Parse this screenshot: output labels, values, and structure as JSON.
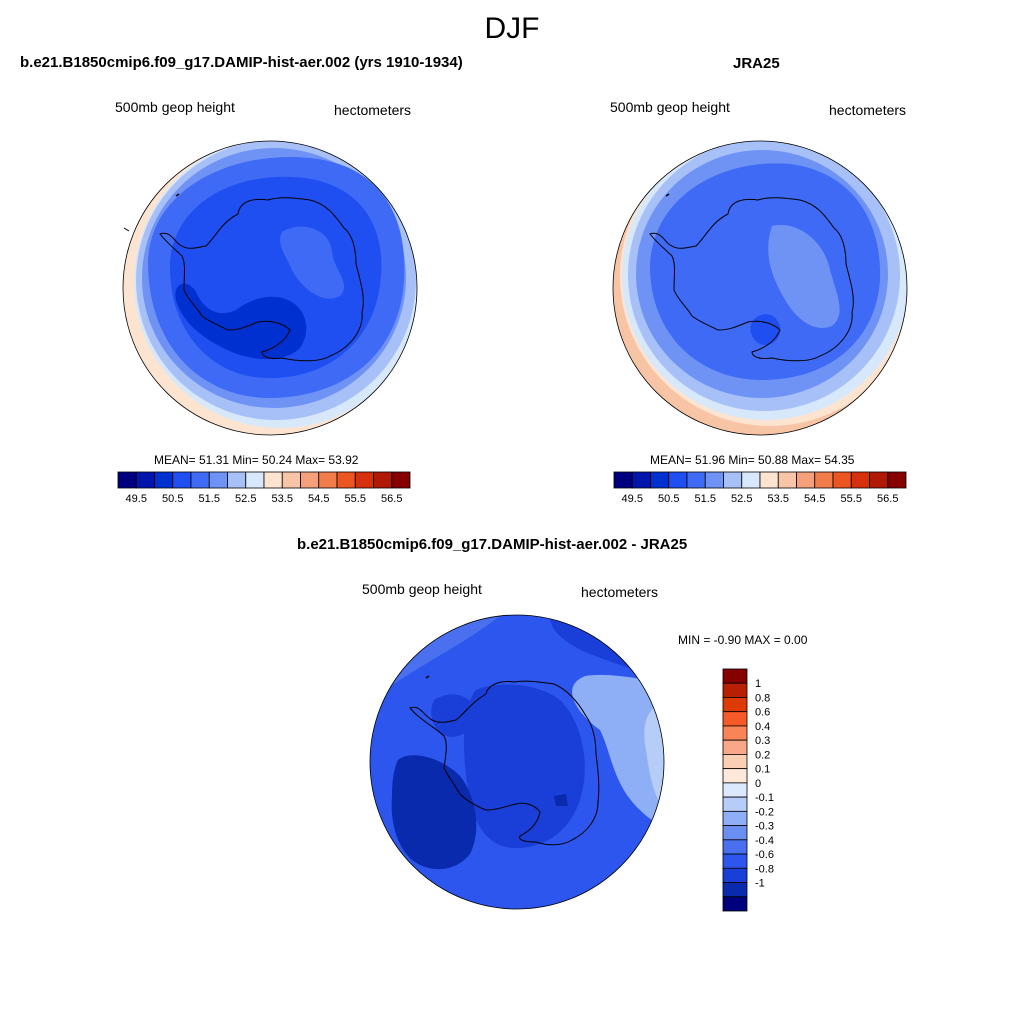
{
  "season": "DJF",
  "panels": [
    {
      "title": "b.e21.B1850cmip6.f09_g17.DAMIP-hist-aer.002 (yrs 1910-1934)",
      "variable": "500mb geop height",
      "units": "hectometers",
      "stats": "MEAN=  51.31  Min=  50.24  Max=  53.92"
    },
    {
      "title": "JRA25",
      "variable": "500mb geop height",
      "units": "hectometers",
      "stats": "MEAN=  51.96  Min=  50.88  Max=  54.35"
    },
    {
      "title": "b.e21.B1850cmip6.f09_g17.DAMIP-hist-aer.002 - JRA25",
      "variable": "500mb geop height",
      "units": "hectometers",
      "stats": "MIN =  -0.90 MAX =   0.00"
    }
  ],
  "abs_colorbar": {
    "colors": [
      "#00007f",
      "#0015aa",
      "#0030d0",
      "#1f4ff0",
      "#3f6af5",
      "#6f93f5",
      "#a7c0f8",
      "#d8e8fb",
      "#fde4d0",
      "#f8c4a6",
      "#f4a07a",
      "#f37c4c",
      "#ea5522",
      "#d6300c",
      "#b01a04",
      "#860000"
    ],
    "labels": [
      "49.5",
      "50.5",
      "51.5",
      "52.5",
      "53.5",
      "54.5",
      "55.5",
      "56.5"
    ]
  },
  "diff_colorbar": {
    "colors": [
      "#860000",
      "#b82004",
      "#de3a06",
      "#f65a28",
      "#f88458",
      "#f8a888",
      "#fbcfb4",
      "#fde8da",
      "#dce8fb",
      "#b6cdf8",
      "#8eaff5",
      "#6a8ff2",
      "#4a70f0",
      "#2c56ee",
      "#1a3fd8",
      "#0a2aae",
      "#00007f"
    ],
    "labels": [
      "1",
      "0.8",
      "0.6",
      "0.4",
      "0.3",
      "0.2",
      "0.1",
      "0",
      "-0.1",
      "-0.2",
      "-0.3",
      "-0.4",
      "-0.6",
      "-0.8",
      "-1"
    ]
  }
}
